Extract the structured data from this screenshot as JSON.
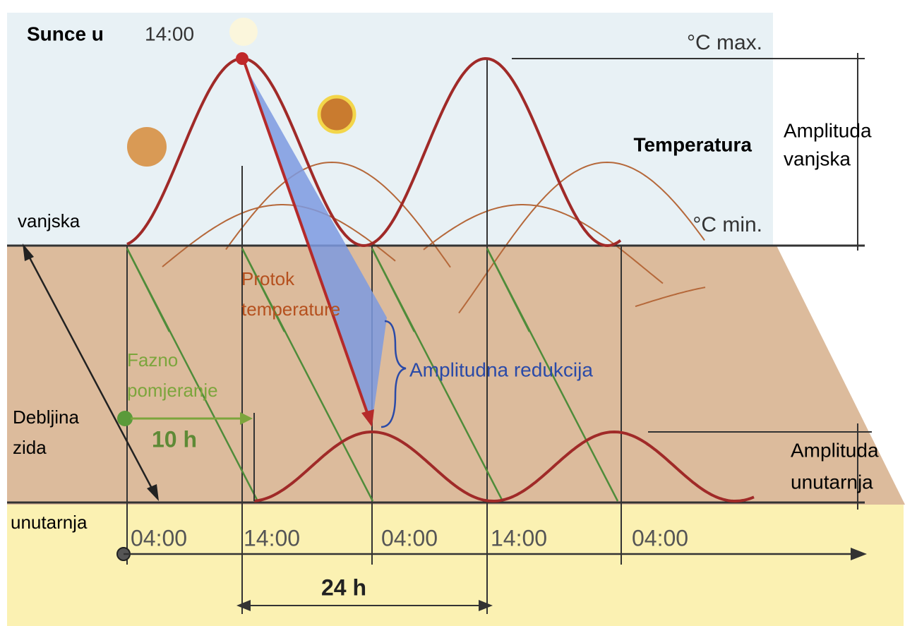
{
  "header": {
    "sun_label": "Sunce u",
    "sun_time": "14:00"
  },
  "outer": {
    "max": "°C max.",
    "min": "°C min.",
    "title": "Temperatura",
    "side": "vanjska",
    "amplitude": [
      "Amplituda",
      "vanjska"
    ]
  },
  "wall": {
    "flow": [
      "Protok",
      "temperature"
    ],
    "reduction": "Amplitudna redukcija",
    "phase": [
      "Fazno",
      "pomjeranje"
    ],
    "thickness": [
      "Debljina",
      "zida"
    ],
    "shift": "10 h"
  },
  "inner": {
    "side": "unutarnja",
    "amplitude": [
      "Amplituda",
      "unutarnja"
    ]
  },
  "time_axis": {
    "labels": [
      "04:00",
      "14:00",
      "04:00",
      "14:00",
      "04:00"
    ],
    "period": "24 h"
  }
}
